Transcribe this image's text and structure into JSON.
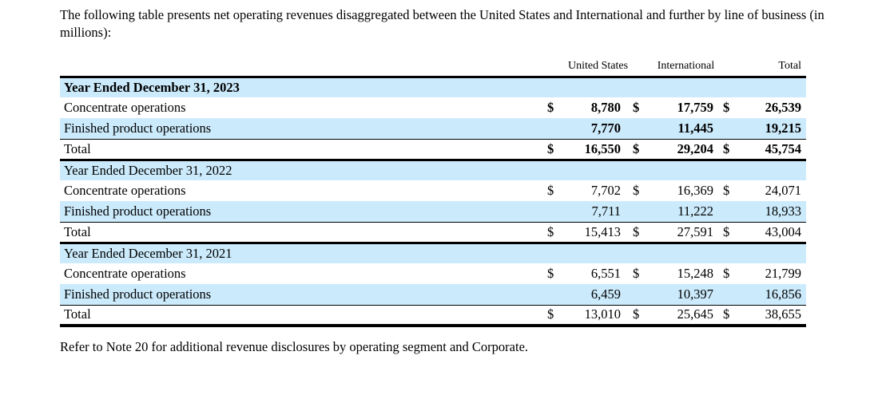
{
  "page": {
    "intro": "The following table presents net operating revenues disaggregated between the United States and International and further by line of business (in millions):",
    "footnote": "Refer to Note 20 for additional revenue disclosures by operating segment and Corporate."
  },
  "table": {
    "dollar": "$",
    "col_headers": {
      "united_states": "United States",
      "international": "International",
      "total": "Total"
    },
    "sections": [
      {
        "title": "Year Ended December 31, 2023",
        "rows": [
          {
            "label": "Concentrate operations",
            "us": "8,780",
            "intl": "17,759",
            "total": "26,539"
          },
          {
            "label": "Finished product operations",
            "us": "7,770",
            "intl": "11,445",
            "total": "19,215"
          },
          {
            "label": "Total",
            "us": "16,550",
            "intl": "29,204",
            "total": "45,754"
          }
        ]
      },
      {
        "title": "Year Ended December 31, 2022",
        "rows": [
          {
            "label": "Concentrate operations",
            "us": "7,702",
            "intl": "16,369",
            "total": "24,071"
          },
          {
            "label": "Finished product operations",
            "us": "7,711",
            "intl": "11,222",
            "total": "18,933"
          },
          {
            "label": "Total",
            "us": "15,413",
            "intl": "27,591",
            "total": "43,004"
          }
        ]
      },
      {
        "title": "Year Ended December 31, 2021",
        "rows": [
          {
            "label": "Concentrate operations",
            "us": "6,551",
            "intl": "15,248",
            "total": "21,799"
          },
          {
            "label": "Finished product operations",
            "us": "6,459",
            "intl": "10,397",
            "total": "16,856"
          },
          {
            "label": "Total",
            "us": "13,010",
            "intl": "25,645",
            "total": "38,655"
          }
        ]
      }
    ]
  },
  "colors": {
    "row_highlight": "#CBEAFB",
    "text": "#000000",
    "rule": "#000000"
  }
}
